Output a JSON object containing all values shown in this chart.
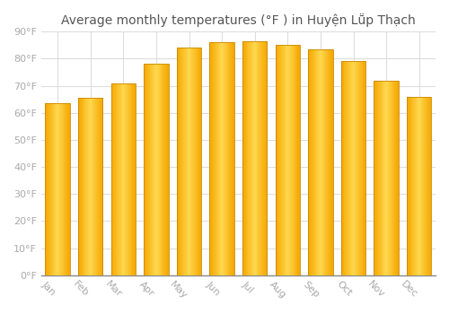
{
  "title": "Average monthly temperatures (°F ) in Huyện Lṻp Thạch",
  "months": [
    "Jan",
    "Feb",
    "Mar",
    "Apr",
    "May",
    "Jun",
    "Jul",
    "Aug",
    "Sep",
    "Oct",
    "Nov",
    "Dec"
  ],
  "values": [
    63.5,
    65.5,
    71.0,
    78.0,
    84.0,
    86.0,
    86.5,
    85.0,
    83.5,
    79.0,
    72.0,
    66.0
  ],
  "bar_color_center": "#FFD050",
  "bar_color_edge": "#F5A800",
  "bar_edge_color": "#CC8800",
  "ylim": [
    0,
    90
  ],
  "yticks": [
    0,
    10,
    20,
    30,
    40,
    50,
    60,
    70,
    80,
    90
  ],
  "ytick_labels": [
    "0°F",
    "10°F",
    "20°F",
    "30°F",
    "40°F",
    "50°F",
    "60°F",
    "70°F",
    "80°F",
    "90°F"
  ],
  "background_color": "#ffffff",
  "plot_bg_color": "#ffffff",
  "grid_color": "#dddddd",
  "title_fontsize": 10,
  "tick_fontsize": 8,
  "tick_color": "#aaaaaa",
  "label_rotation": -45
}
